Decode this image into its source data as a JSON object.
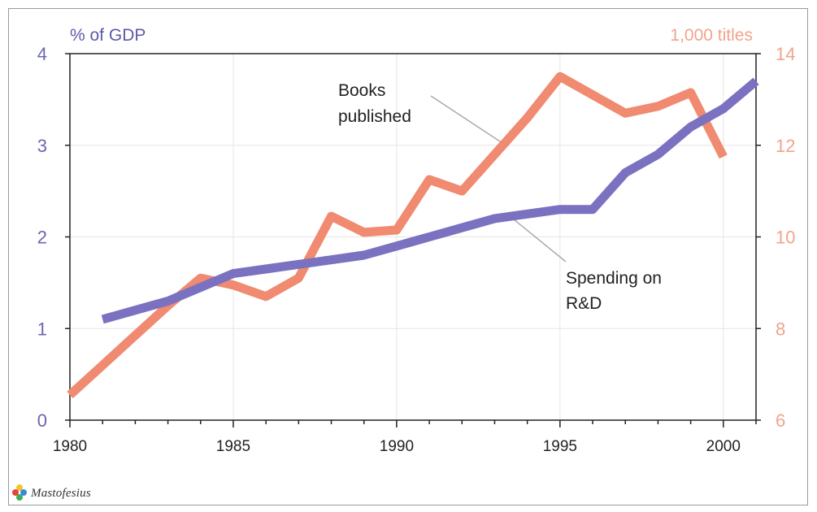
{
  "chart_data": {
    "type": "line",
    "x_range": [
      1980,
      2001
    ],
    "x_ticks": [
      1980,
      1985,
      1990,
      1995,
      2000
    ],
    "left_axis": {
      "unit_label": "% of GDP",
      "ylim": [
        0,
        4
      ],
      "ticks": [
        0,
        1,
        2,
        3,
        4
      ],
      "color": "#7a72c0"
    },
    "right_axis": {
      "unit_label": "1,000 titles",
      "ylim": [
        6,
        14
      ],
      "ticks": [
        6,
        8,
        10,
        12,
        14
      ],
      "color": "#f0a48c"
    },
    "grid": true,
    "series": [
      {
        "name": "Books published",
        "axis": "right",
        "color": "#f08a70",
        "x": [
          1980,
          1981,
          1982,
          1983,
          1984,
          1985,
          1986,
          1987,
          1988,
          1989,
          1990,
          1991,
          1992,
          1993,
          1994,
          1995,
          1996,
          1997,
          1998,
          1999,
          2000
        ],
        "y": [
          6.55,
          7.2,
          7.85,
          8.5,
          9.1,
          8.95,
          8.7,
          9.1,
          10.45,
          10.1,
          10.15,
          11.25,
          11.0,
          11.8,
          12.6,
          13.5,
          13.1,
          12.7,
          12.85,
          13.15,
          11.75
        ]
      },
      {
        "name": "Spending on R&D",
        "axis": "left",
        "color": "#7a72c0",
        "x": [
          1981,
          1982,
          1983,
          1984,
          1985,
          1986,
          1987,
          1988,
          1989,
          1990,
          1991,
          1992,
          1993,
          1994,
          1995,
          1996,
          1997,
          1998,
          1999,
          2000,
          2001
        ],
        "y": [
          1.1,
          1.2,
          1.3,
          1.45,
          1.6,
          1.65,
          1.7,
          1.75,
          1.8,
          1.9,
          2.0,
          2.1,
          2.2,
          2.25,
          2.3,
          2.3,
          2.7,
          2.9,
          3.2,
          3.4,
          3.7
        ]
      }
    ],
    "annotations": [
      {
        "lines": [
          "Books",
          "published"
        ],
        "series": "Books published"
      },
      {
        "lines": [
          "Spending on",
          "R&D"
        ],
        "series": "Spending on R&D"
      }
    ]
  },
  "watermark": {
    "text": "Mastofesius",
    "icon": "colorful-leaf-logo-icon"
  }
}
